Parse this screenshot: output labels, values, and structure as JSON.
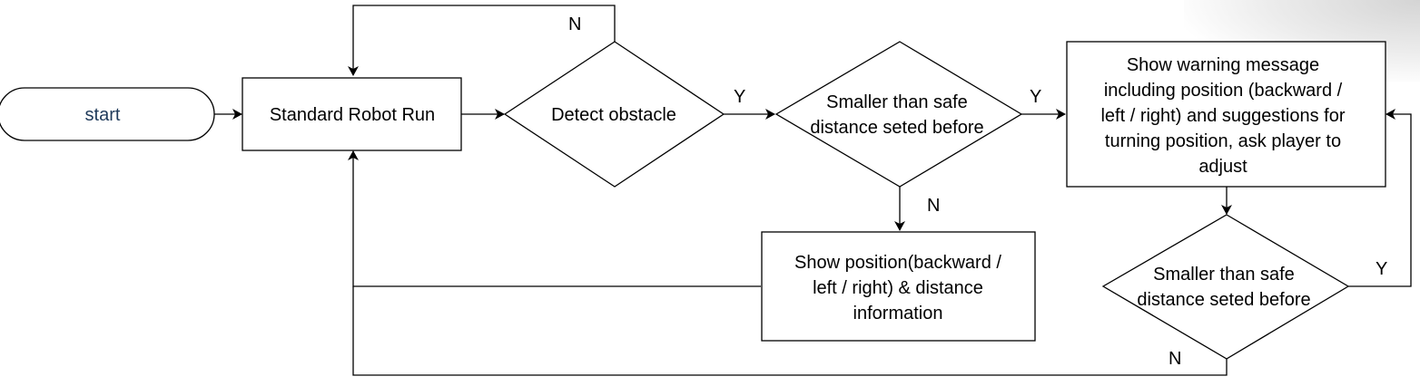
{
  "nodes": {
    "start": [
      "start"
    ],
    "standard_run": [
      "Standard Robot Run"
    ],
    "detect": [
      "Detect obstacle"
    ],
    "decision1": [
      "Smaller than safe",
      "distance seted before"
    ],
    "warning": [
      "Show warning message",
      "including position (backward /",
      "left / right) and suggestions for",
      "turning position, ask player to",
      "adjust"
    ],
    "show_position": [
      "Show position(backward /",
      "left / right) & distance",
      "information"
    ],
    "decision2": [
      "Smaller than safe",
      "distance seted before"
    ]
  },
  "edge_labels": {
    "detect_no": "N",
    "detect_yes": "Y",
    "decision1_yes": "Y",
    "decision1_no": "N",
    "decision2_yes": "Y",
    "decision2_no": "N"
  }
}
